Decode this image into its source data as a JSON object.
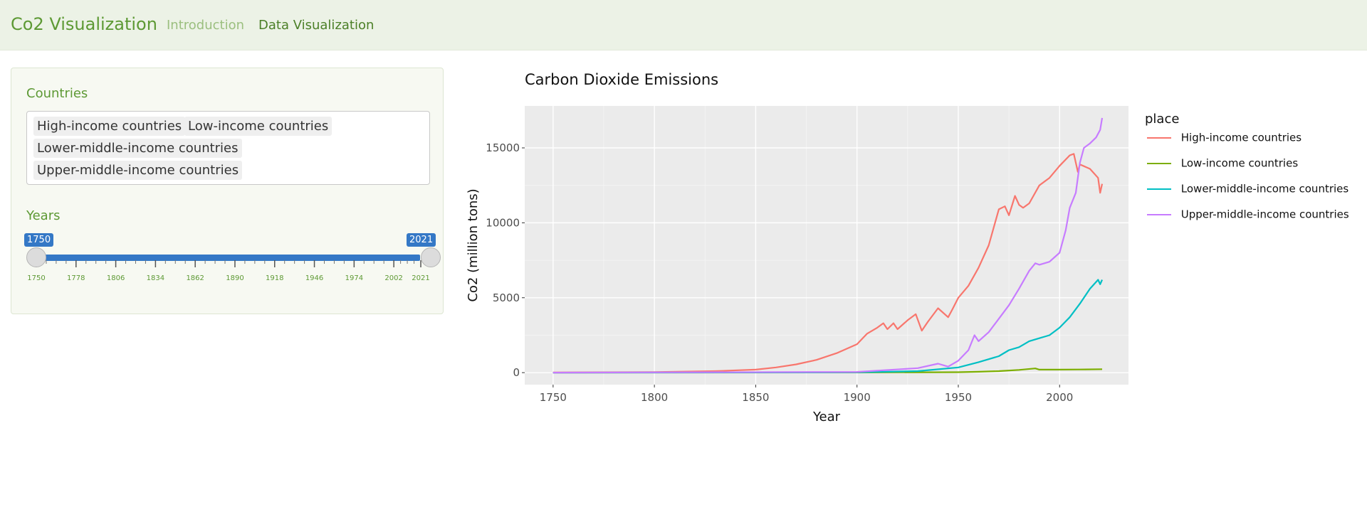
{
  "navbar": {
    "brand": "Co2 Visualization",
    "items": [
      {
        "label": "Introduction",
        "active": false
      },
      {
        "label": "Data Visualization",
        "active": true
      }
    ],
    "colors": {
      "background": "#ecf2e6",
      "brand": "#5d9934"
    }
  },
  "sidebar": {
    "countries_label": "Countries",
    "selected_countries": [
      "High-income countries",
      "Low-income countries",
      "Lower-middle-income countries",
      "Upper-middle-income countries"
    ],
    "years_label": "Years",
    "slider": {
      "min_value": "1750",
      "max_value": "2021",
      "ticks": [
        "1750",
        "1778",
        "1806",
        "1834",
        "1862",
        "1890",
        "1918",
        "1946",
        "1974",
        "2002",
        "2021"
      ],
      "range_min": 1750,
      "range_max": 2021,
      "color": "#3478c6"
    }
  },
  "chart_data": {
    "type": "line",
    "title": "Carbon Dioxide Emissions",
    "xlabel": "Year",
    "ylabel": "Co2 (million tons)",
    "xlim": [
      1736,
      2034
    ],
    "ylim": [
      -800,
      17800
    ],
    "xticks": [
      1750,
      1800,
      1850,
      1900,
      1950,
      2000
    ],
    "yticks": [
      0,
      5000,
      10000,
      15000
    ],
    "ytick_labels": [
      "0",
      "5000",
      "10000",
      "15000"
    ],
    "grid": true,
    "background": "#ebebeb",
    "legend": {
      "title": "place",
      "position": "right"
    },
    "series": [
      {
        "name": "High-income countries",
        "color": "#f8766d",
        "x": [
          1750,
          1800,
          1830,
          1850,
          1860,
          1870,
          1880,
          1890,
          1900,
          1905,
          1910,
          1913,
          1915,
          1918,
          1920,
          1925,
          1929,
          1932,
          1935,
          1940,
          1945,
          1947,
          1950,
          1955,
          1960,
          1965,
          1970,
          1973,
          1975,
          1978,
          1980,
          1982,
          1985,
          1990,
          1995,
          2000,
          2005,
          2007,
          2009,
          2010,
          2015,
          2019,
          2020,
          2021
        ],
        "y": [
          10,
          40,
          100,
          200,
          350,
          550,
          850,
          1300,
          1900,
          2600,
          3000,
          3300,
          2900,
          3300,
          2900,
          3500,
          3900,
          2800,
          3400,
          4300,
          3700,
          4200,
          5000,
          5800,
          7000,
          8500,
          10900,
          11100,
          10500,
          11800,
          11200,
          11000,
          11300,
          12500,
          13000,
          13800,
          14500,
          14600,
          13400,
          13900,
          13600,
          13000,
          12000,
          12600
        ]
      },
      {
        "name": "Low-income countries",
        "color": "#7cae00",
        "x": [
          1750,
          1900,
          1950,
          1960,
          1970,
          1980,
          1988,
          1990,
          2000,
          2010,
          2021
        ],
        "y": [
          0,
          10,
          30,
          60,
          100,
          180,
          280,
          200,
          200,
          210,
          230
        ]
      },
      {
        "name": "Lower-middle-income countries",
        "color": "#00bfc4",
        "x": [
          1750,
          1900,
          1930,
          1950,
          1960,
          1970,
          1975,
          1980,
          1985,
          1990,
          1995,
          2000,
          2005,
          2010,
          2015,
          2019,
          2020,
          2021
        ],
        "y": [
          0,
          20,
          100,
          350,
          700,
          1100,
          1500,
          1700,
          2100,
          2300,
          2500,
          3000,
          3700,
          4600,
          5600,
          6200,
          5900,
          6200
        ]
      },
      {
        "name": "Upper-middle-income countries",
        "color": "#c77cff",
        "x": [
          1750,
          1900,
          1930,
          1940,
          1945,
          1950,
          1955,
          1958,
          1960,
          1965,
          1970,
          1975,
          1980,
          1985,
          1988,
          1990,
          1995,
          2000,
          2003,
          2005,
          2008,
          2010,
          2012,
          2015,
          2018,
          2020,
          2021
        ],
        "y": [
          0,
          50,
          300,
          600,
          400,
          800,
          1500,
          2500,
          2100,
          2700,
          3600,
          4500,
          5600,
          6800,
          7300,
          7200,
          7400,
          8000,
          9500,
          11000,
          12000,
          14000,
          15000,
          15300,
          15700,
          16200,
          17000
        ]
      }
    ]
  }
}
